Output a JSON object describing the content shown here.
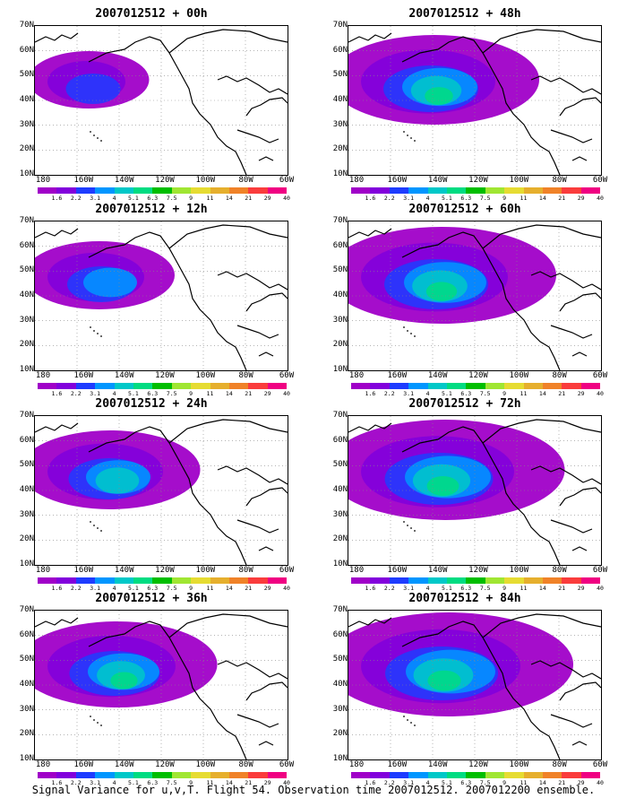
{
  "caption": "Signal Variance for u,v,T. Flight 54. Observation time 2007012512. 2007012200 ensemble.",
  "y_ticks": [
    "70N",
    "60N",
    "50N",
    "40N",
    "30N",
    "20N",
    "10N"
  ],
  "x_ticks": [
    "180",
    "160W",
    "140W",
    "120W",
    "100W",
    "80W",
    "60W"
  ],
  "colorbar": {
    "labels": [
      "1.6",
      "2.2",
      "3.1",
      "4",
      "5.1",
      "6.3",
      "7.5",
      "9",
      "11",
      "14",
      "21",
      "29",
      "40"
    ],
    "colors": [
      "#a000c8",
      "#8200dc",
      "#1e3cff",
      "#0096ff",
      "#00c8c8",
      "#00dc82",
      "#00be00",
      "#a0e632",
      "#e6dc32",
      "#e6af2d",
      "#f08228",
      "#fa3c3c",
      "#f00082"
    ]
  },
  "panels": [
    {
      "title": "2007012512 + 00h",
      "coverage": 0.25
    },
    {
      "title": "2007012512 + 48h",
      "coverage": 0.7
    },
    {
      "title": "2007012512 + 12h",
      "coverage": 0.4
    },
    {
      "title": "2007012512 + 60h",
      "coverage": 0.8
    },
    {
      "title": "2007012512 + 24h",
      "coverage": 0.55
    },
    {
      "title": "2007012512 + 72h",
      "coverage": 0.85
    },
    {
      "title": "2007012512 + 36h",
      "coverage": 0.65
    },
    {
      "title": "2007012512 + 84h",
      "coverage": 0.9
    }
  ]
}
